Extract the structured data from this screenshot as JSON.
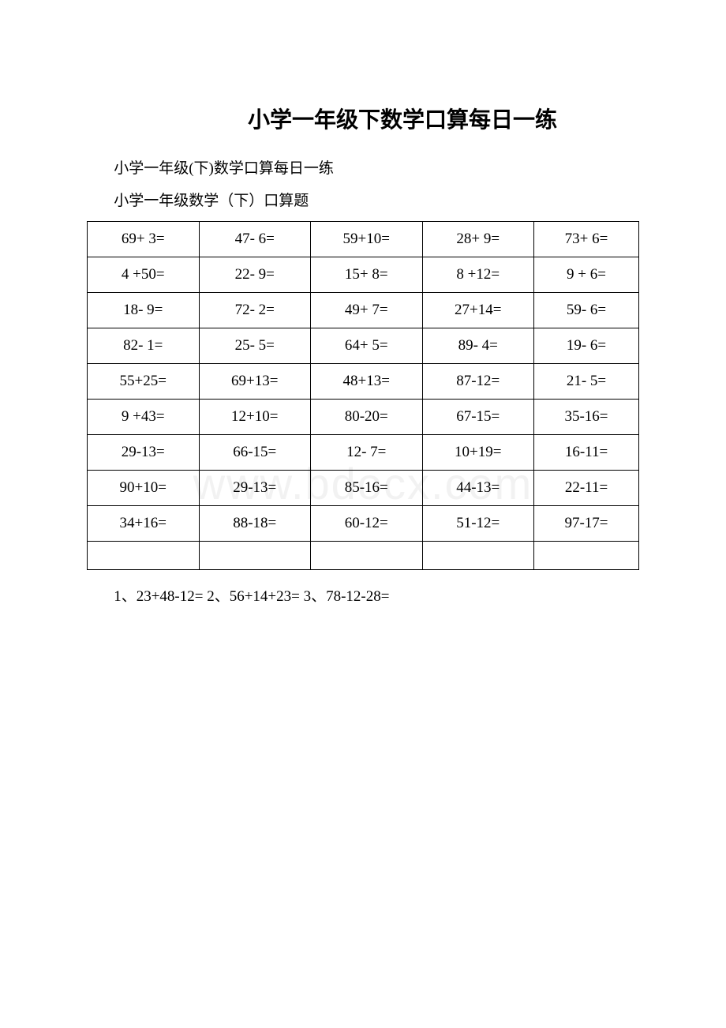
{
  "title": "小学一年级下数学口算每日一练",
  "subtitle1": "小学一年级(下)数学口算每日一练",
  "subtitle2": "小学一年级数学（下）口算题",
  "watermark": "www.bdocx.com",
  "table": {
    "type": "table",
    "columns": 5,
    "border_color": "#000000",
    "background_color": "#ffffff",
    "font_size": 19,
    "rows": [
      [
        "69+ 3=",
        "47- 6=",
        "59+10=",
        "28+ 9=",
        "73+ 6="
      ],
      [
        "4 +50=",
        "22- 9=",
        "15+ 8=",
        "8 +12=",
        "9 + 6="
      ],
      [
        "18- 9=",
        "72- 2=",
        "49+ 7=",
        "27+14=",
        "59- 6="
      ],
      [
        "82- 1=",
        "25- 5=",
        "64+ 5=",
        "89- 4=",
        "19- 6="
      ],
      [
        "55+25=",
        "69+13=",
        "48+13=",
        "87-12=",
        "21- 5="
      ],
      [
        "9 +43=",
        "12+10=",
        "80-20=",
        "67-15=",
        "35-16="
      ],
      [
        "29-13=",
        "66-15=",
        "12- 7=",
        "10+19=",
        "16-11="
      ],
      [
        "90+10=",
        "29-13=",
        "85-16=",
        "44-13=",
        "22-11="
      ],
      [
        "34+16=",
        "88-18=",
        "60-12=",
        "51-12=",
        "97-17="
      ],
      [
        "",
        "",
        "",
        "",
        ""
      ]
    ]
  },
  "bottom_problems": "1、23+48-12= 2、56+14+23= 3、78-12-28="
}
